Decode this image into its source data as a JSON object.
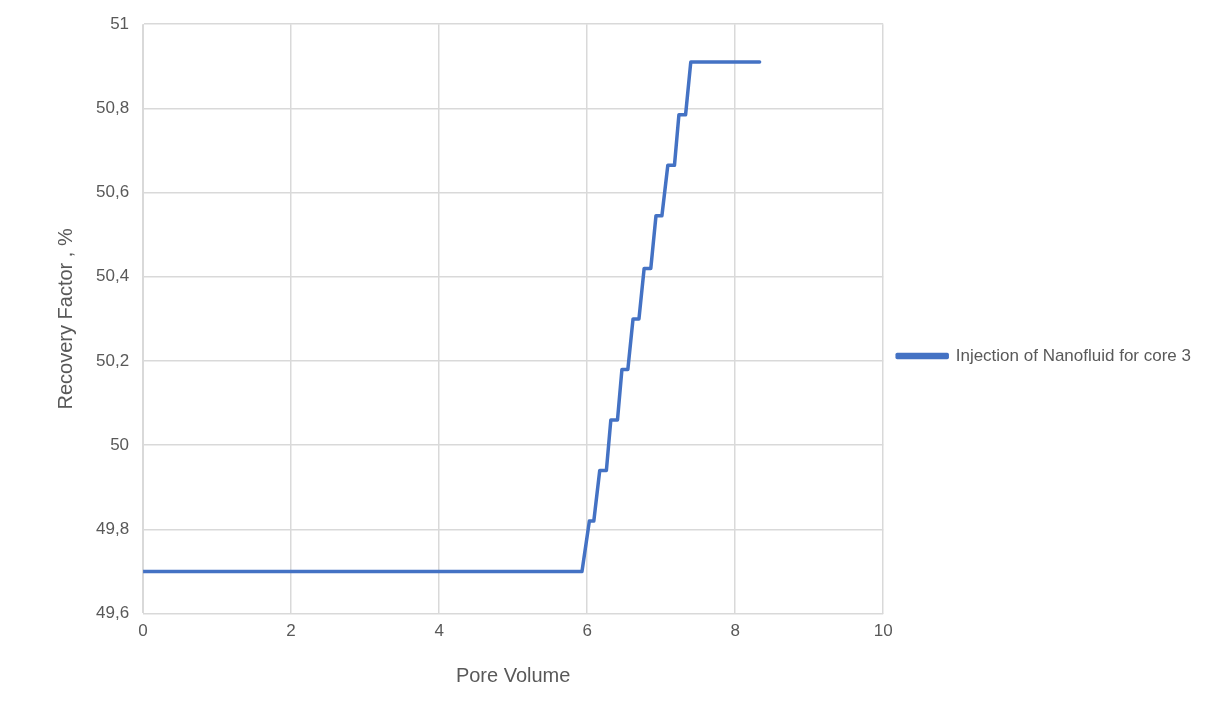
{
  "chart_data": {
    "type": "line",
    "xlabel": "Pore Volume",
    "ylabel": "Recovery Factor , %",
    "series": [
      {
        "name": "Injection of Nanofluid for core 3",
        "color": "#4472c4",
        "x": [
          0,
          5.93,
          6.03,
          6.09,
          6.17,
          6.26,
          6.32,
          6.41,
          6.47,
          6.55,
          6.62,
          6.7,
          6.77,
          6.86,
          6.93,
          7.01,
          7.09,
          7.18,
          7.24,
          7.33,
          7.4,
          8.33
        ],
        "values": [
          49.7,
          49.7,
          49.82,
          49.82,
          49.94,
          49.94,
          50.06,
          50.06,
          50.18,
          50.18,
          50.3,
          50.3,
          50.42,
          50.42,
          50.545,
          50.545,
          50.665,
          50.665,
          50.785,
          50.785,
          50.91,
          50.91
        ]
      }
    ],
    "xlim": [
      0,
      10
    ],
    "xticks": [
      0,
      2,
      4,
      6,
      8,
      10
    ],
    "ylim": [
      49.6,
      51
    ],
    "yticks": [
      {
        "value": 49.6,
        "label": "49,6"
      },
      {
        "value": 49.8,
        "label": "49,8"
      },
      {
        "value": 50,
        "label": "50"
      },
      {
        "value": 50.2,
        "label": "50,2"
      },
      {
        "value": 50.4,
        "label": "50,4"
      },
      {
        "value": 50.6,
        "label": "50,6"
      },
      {
        "value": 50.8,
        "label": "50,8"
      },
      {
        "value": 51,
        "label": "51"
      }
    ],
    "grid": true,
    "legend": "right",
    "marker": "none",
    "line_style": "solid"
  }
}
